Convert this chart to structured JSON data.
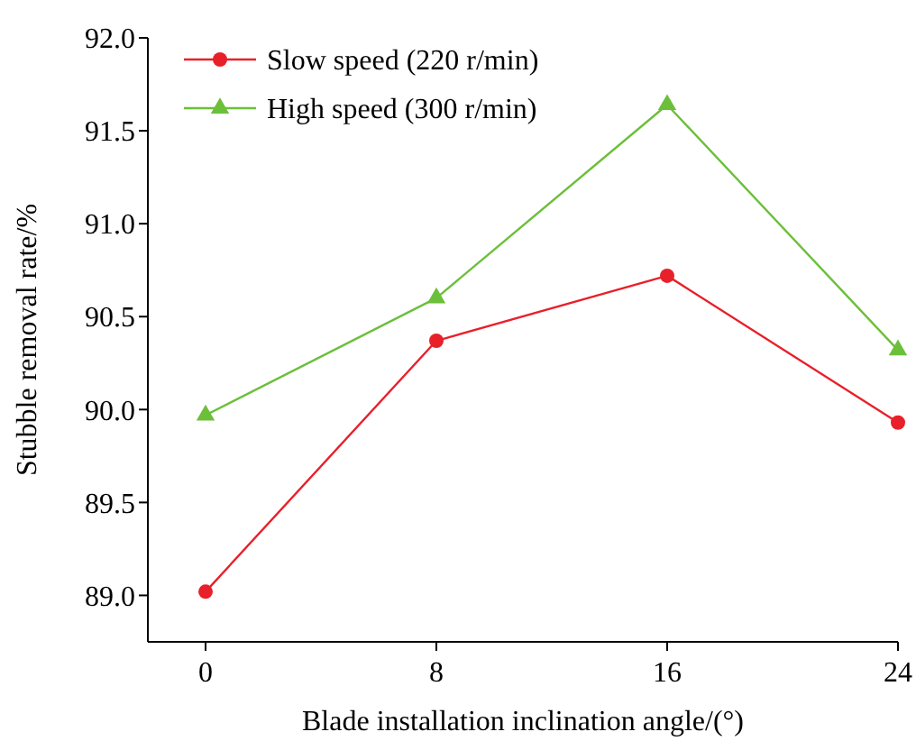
{
  "chart_data": {
    "type": "line",
    "xlabel": "Blade installation inclination angle/(°)",
    "ylabel": "Stubble removal rate/%",
    "x": [
      0,
      8,
      16,
      24
    ],
    "xlim": [
      -2,
      24
    ],
    "xticks": [
      0,
      8,
      16,
      24
    ],
    "ylim": [
      88.75,
      92.0
    ],
    "yticks": [
      {
        "value": 89,
        "label": "89.0"
      },
      {
        "value": 89.5,
        "label": "89.5"
      },
      {
        "value": 90,
        "label": "90.0"
      },
      {
        "value": 90.5,
        "label": "90.5"
      },
      {
        "value": 91,
        "label": "91.0"
      },
      {
        "value": 91.5,
        "label": "91.5"
      },
      {
        "value": 92,
        "label": "92.0"
      }
    ],
    "series": [
      {
        "name": "Slow speed (220 r/min)",
        "color": "#e8202a",
        "marker": "circle",
        "values": [
          89.02,
          90.37,
          90.72,
          89.93
        ]
      },
      {
        "name": "High speed (300 r/min)",
        "color": "#6cbf3a",
        "marker": "triangle",
        "values": [
          89.97,
          90.6,
          91.64,
          90.32
        ]
      }
    ],
    "legend": "top left",
    "grid": false,
    "line_style": "solid"
  }
}
